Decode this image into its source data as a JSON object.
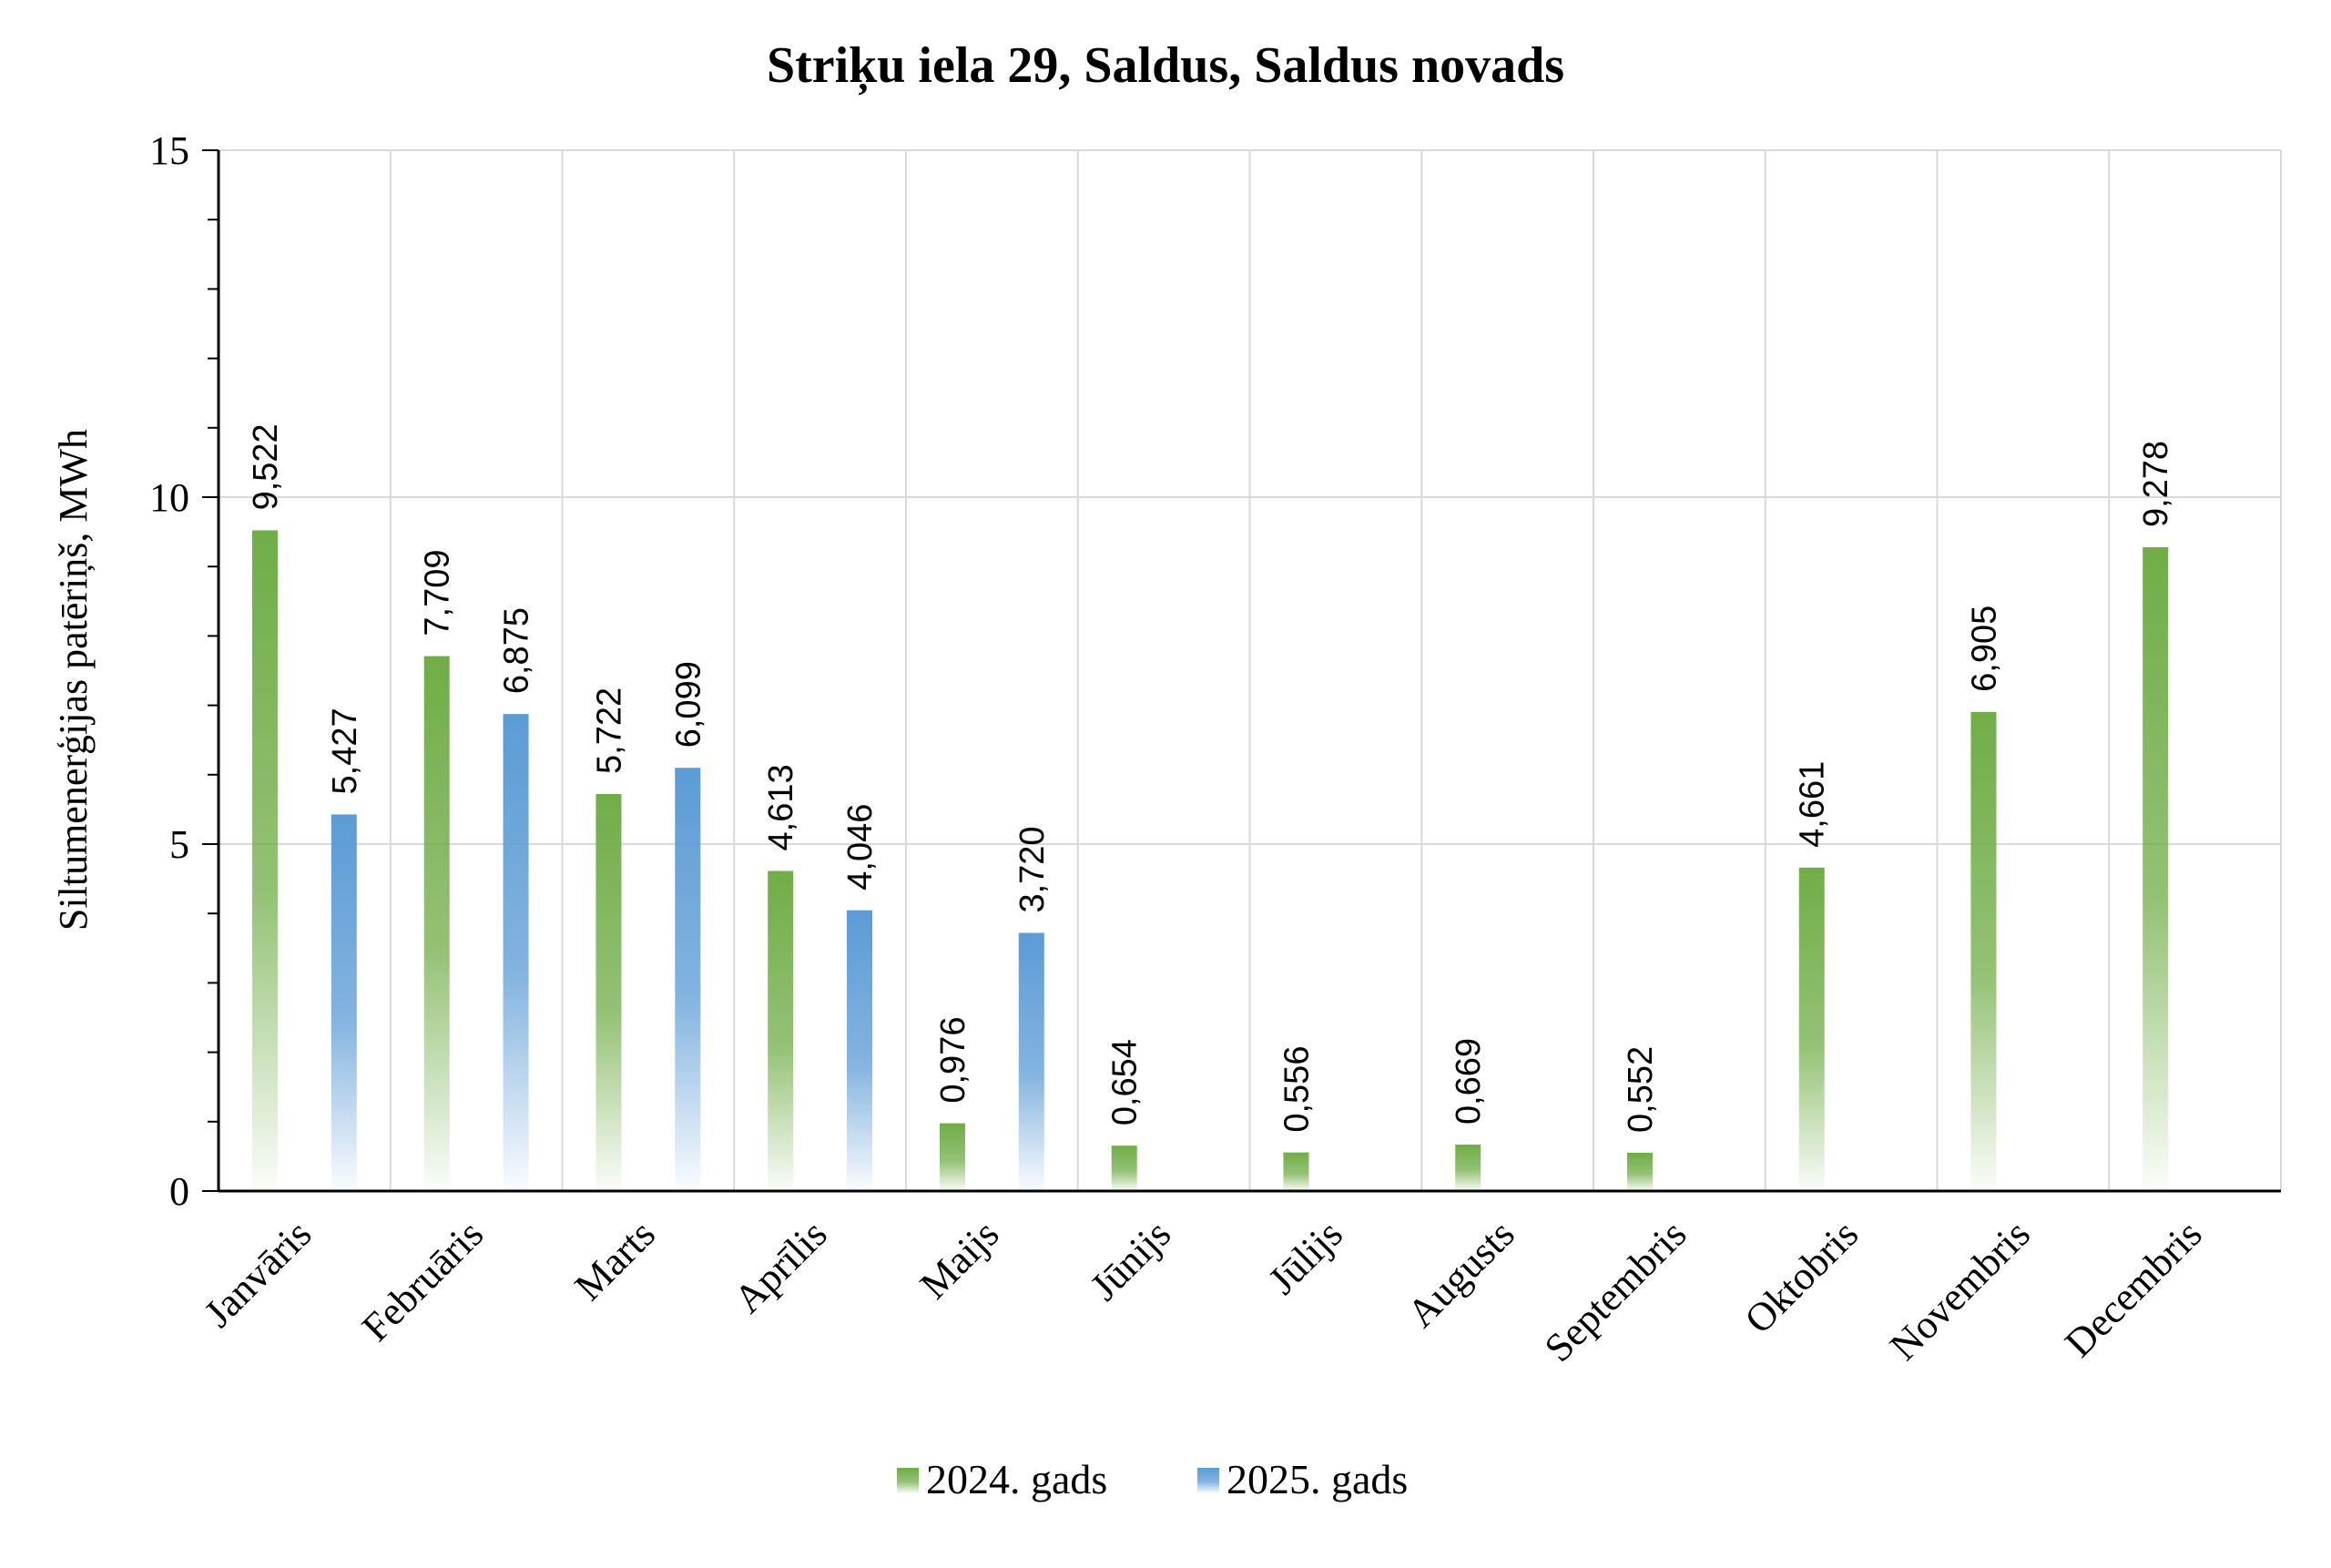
{
  "chart_data": {
    "type": "bar",
    "title": "Striķu iela 29, Saldus, Saldus novads",
    "xlabel": "",
    "ylabel": "Siltumenerģijas patēriņš, MWh",
    "ylim": [
      0,
      15
    ],
    "yticks": [
      "0",
      "5",
      "10",
      "15"
    ],
    "ytick_values": [
      0,
      5,
      10,
      15
    ],
    "grid": true,
    "legend_position": "bottom",
    "categories": [
      "Janvāris",
      "Februāris",
      "Marts",
      "Aprīlis",
      "Maijs",
      "Jūnijs",
      "Jūlijs",
      "Augusts",
      "Septembris",
      "Oktobris",
      "Novembris",
      "Decembris"
    ],
    "series": [
      {
        "name": "2024. gads",
        "color": "#70ad47",
        "values": [
          9.522,
          7.709,
          5.722,
          4.613,
          0.976,
          0.654,
          0.556,
          0.669,
          0.552,
          4.661,
          6.905,
          9.278
        ],
        "labels": [
          "9,522",
          "7,709",
          "5,722",
          "4,613",
          "0,976",
          "0,654",
          "0,556",
          "0,669",
          "0,552",
          "4,661",
          "6,905",
          "9,278"
        ]
      },
      {
        "name": "2025. gads",
        "color": "#5b9bd5",
        "values": [
          5.427,
          6.875,
          6.099,
          4.046,
          3.72,
          null,
          null,
          null,
          null,
          null,
          null,
          null
        ],
        "labels": [
          "5,427",
          "6,875",
          "6,099",
          "4,046",
          "3,720",
          "",
          "",
          "",
          "",
          "",
          "",
          ""
        ]
      }
    ]
  }
}
